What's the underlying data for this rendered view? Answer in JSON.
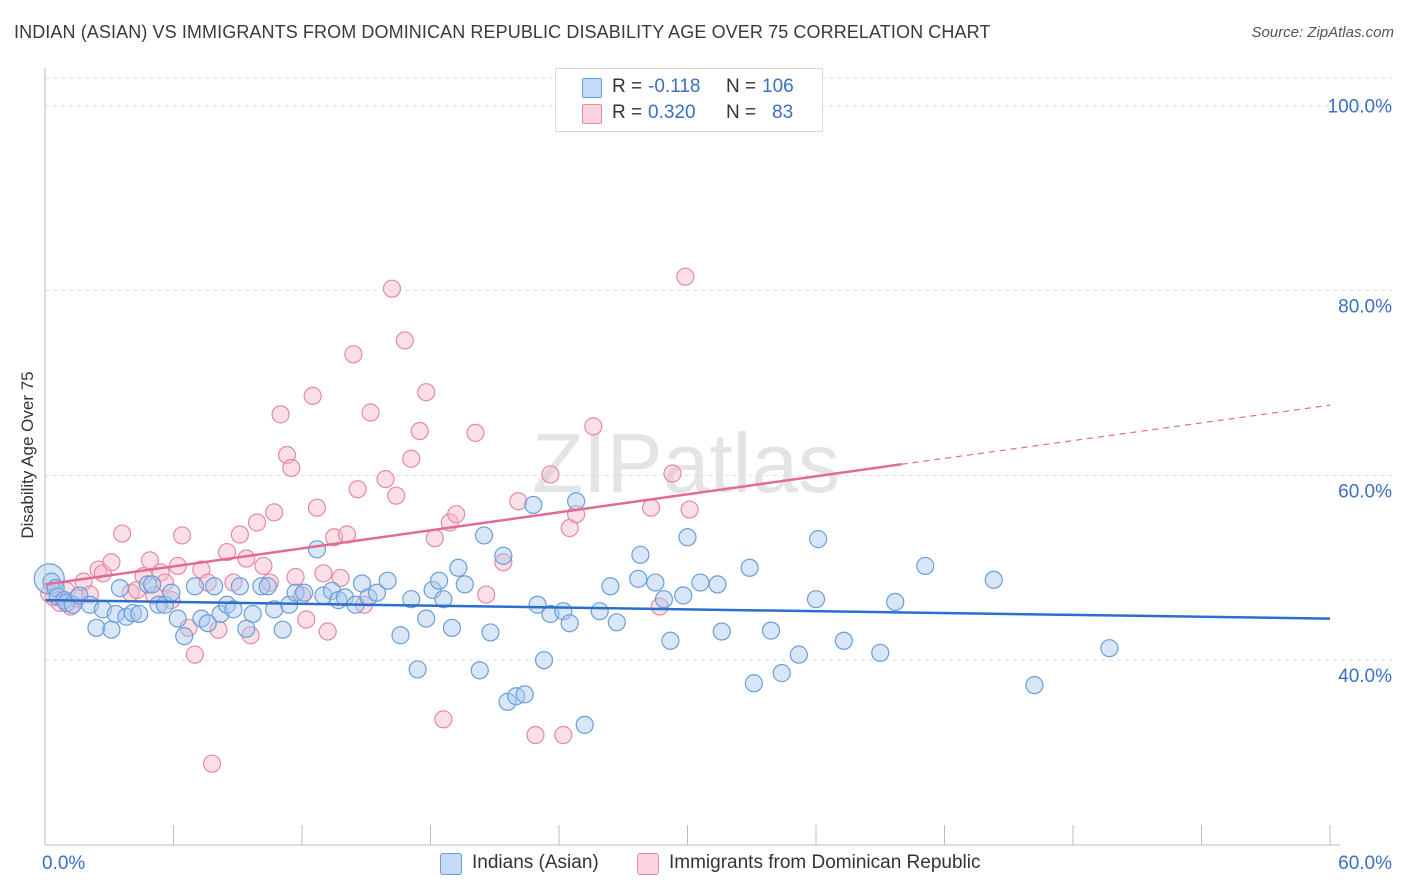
{
  "title": "INDIAN (ASIAN) VS IMMIGRANTS FROM DOMINICAN REPUBLIC DISABILITY AGE OVER 75 CORRELATION CHART",
  "source": "Source: ZipAtlas.com",
  "watermark": "ZIPatlas",
  "colors": {
    "blue_fill": "#a9c8f0",
    "blue_stroke": "#6a9fd8",
    "blue_line": "#2a6fcc",
    "pink_fill": "#f6b8c9",
    "pink_stroke": "#e58aa6",
    "pink_line": "#e36a92",
    "axis_label": "#3a6fc2"
  },
  "stats_legend": {
    "row1": {
      "r_label": "R =",
      "r_value": "-0.118",
      "n_label": "N =",
      "n_value": "106"
    },
    "row2": {
      "r_label": "R =",
      "r_value": "0.320",
      "n_label": "N =",
      "n_value": "83"
    }
  },
  "bottom_legend": {
    "series1": "Indians (Asian)",
    "series2": "Immigrants from Dominican Republic"
  },
  "chart_data": {
    "type": "scatter",
    "ylabel": "Disability Age Over 75",
    "xlim": [
      0,
      60
    ],
    "ylim": [
      20,
      103
    ],
    "x_tick_labels": [
      "0.0%",
      "60.0%"
    ],
    "y_tick_labels": [
      "40.0%",
      "60.0%",
      "80.0%",
      "100.0%"
    ],
    "y_ticks": [
      40,
      60,
      80,
      100
    ],
    "grid": true,
    "series": [
      {
        "name": "Indians (Asian)",
        "trend": {
          "x": [
            0,
            60
          ],
          "y": [
            46.5,
            44.5
          ]
        },
        "points": [
          [
            0.3,
            48.5
          ],
          [
            0.5,
            47.8
          ],
          [
            0.6,
            46.9
          ],
          [
            0.9,
            46.5
          ],
          [
            1.0,
            46.2
          ],
          [
            1.3,
            46.0
          ],
          [
            1.6,
            47.0
          ],
          [
            2.1,
            46.0
          ],
          [
            2.4,
            43.5
          ],
          [
            2.7,
            45.5
          ],
          [
            3.1,
            43.3
          ],
          [
            3.3,
            45.0
          ],
          [
            3.5,
            47.8
          ],
          [
            3.8,
            44.7
          ],
          [
            4.1,
            45.1
          ],
          [
            4.4,
            45.0
          ],
          [
            4.8,
            48.2
          ],
          [
            5.0,
            48.2
          ],
          [
            5.3,
            46.0
          ],
          [
            5.6,
            46.0
          ],
          [
            5.9,
            47.3
          ],
          [
            6.2,
            44.5
          ],
          [
            6.5,
            42.6
          ],
          [
            7.0,
            48.0
          ],
          [
            7.3,
            44.5
          ],
          [
            7.6,
            44.0
          ],
          [
            7.9,
            48.0
          ],
          [
            8.2,
            45.0
          ],
          [
            8.5,
            46.0
          ],
          [
            8.8,
            45.5
          ],
          [
            9.1,
            48.0
          ],
          [
            9.4,
            43.4
          ],
          [
            9.7,
            45.0
          ],
          [
            10.1,
            48.0
          ],
          [
            10.4,
            48.0
          ],
          [
            10.7,
            45.5
          ],
          [
            11.1,
            43.3
          ],
          [
            11.4,
            46.0
          ],
          [
            11.7,
            47.3
          ],
          [
            12.1,
            47.3
          ],
          [
            12.7,
            52.0
          ],
          [
            13.0,
            47.0
          ],
          [
            13.4,
            47.5
          ],
          [
            13.7,
            46.5
          ],
          [
            14.0,
            46.8
          ],
          [
            14.5,
            46.0
          ],
          [
            14.8,
            48.3
          ],
          [
            15.1,
            46.8
          ],
          [
            15.5,
            47.3
          ],
          [
            16.0,
            48.6
          ],
          [
            16.6,
            42.7
          ],
          [
            17.1,
            46.6
          ],
          [
            17.4,
            39.0
          ],
          [
            17.8,
            44.5
          ],
          [
            18.1,
            47.6
          ],
          [
            18.4,
            48.6
          ],
          [
            18.6,
            46.6
          ],
          [
            19.0,
            43.5
          ],
          [
            19.3,
            50.0
          ],
          [
            19.6,
            48.2
          ],
          [
            20.3,
            38.9
          ],
          [
            20.5,
            53.5
          ],
          [
            20.8,
            43.0
          ],
          [
            21.4,
            51.3
          ],
          [
            21.6,
            35.5
          ],
          [
            22.0,
            36.1
          ],
          [
            22.4,
            36.3
          ],
          [
            22.8,
            56.8
          ],
          [
            23.0,
            46.0
          ],
          [
            23.3,
            40.0
          ],
          [
            23.6,
            45.0
          ],
          [
            24.2,
            45.3
          ],
          [
            24.5,
            44.0
          ],
          [
            24.8,
            57.2
          ],
          [
            25.2,
            33.0
          ],
          [
            25.9,
            45.3
          ],
          [
            26.4,
            48.0
          ],
          [
            26.7,
            44.1
          ],
          [
            27.7,
            48.8
          ],
          [
            27.8,
            51.4
          ],
          [
            28.5,
            48.4
          ],
          [
            28.9,
            46.6
          ],
          [
            29.2,
            42.1
          ],
          [
            29.8,
            47.0
          ],
          [
            30.0,
            53.3
          ],
          [
            30.6,
            48.4
          ],
          [
            31.4,
            48.2
          ],
          [
            31.6,
            43.1
          ],
          [
            32.9,
            50.0
          ],
          [
            33.1,
            37.5
          ],
          [
            33.9,
            43.2
          ],
          [
            34.4,
            38.6
          ],
          [
            35.2,
            40.6
          ],
          [
            36.0,
            46.6
          ],
          [
            36.1,
            53.1
          ],
          [
            37.3,
            42.1
          ],
          [
            39.0,
            40.8
          ],
          [
            39.7,
            46.3
          ],
          [
            41.1,
            50.2
          ],
          [
            44.3,
            48.7
          ],
          [
            46.2,
            37.3
          ],
          [
            49.7,
            41.3
          ]
        ]
      },
      {
        "name": "Immigrants from Dominican Republic",
        "trend": {
          "x": [
            0,
            40
          ],
          "y": [
            48.2,
            61.2
          ]
        },
        "trend_extension": {
          "x": [
            40,
            60
          ],
          "y": [
            61.2,
            67.6
          ]
        },
        "points": [
          [
            0.2,
            47.2
          ],
          [
            0.4,
            46.8
          ],
          [
            0.7,
            46.2
          ],
          [
            1.0,
            47.5
          ],
          [
            1.2,
            45.8
          ],
          [
            1.5,
            46.7
          ],
          [
            1.8,
            48.5
          ],
          [
            2.1,
            47.1
          ],
          [
            2.5,
            49.8
          ],
          [
            2.7,
            49.4
          ],
          [
            3.1,
            50.6
          ],
          [
            3.6,
            53.7
          ],
          [
            4.0,
            47.3
          ],
          [
            4.3,
            47.6
          ],
          [
            4.6,
            49.1
          ],
          [
            4.9,
            50.8
          ],
          [
            5.1,
            47.0
          ],
          [
            5.4,
            49.5
          ],
          [
            5.6,
            48.4
          ],
          [
            5.9,
            46.5
          ],
          [
            6.2,
            50.2
          ],
          [
            6.4,
            53.5
          ],
          [
            6.7,
            43.5
          ],
          [
            7.0,
            40.6
          ],
          [
            7.3,
            49.8
          ],
          [
            7.6,
            48.4
          ],
          [
            7.8,
            28.8
          ],
          [
            8.1,
            43.3
          ],
          [
            8.5,
            51.7
          ],
          [
            8.8,
            48.4
          ],
          [
            9.1,
            53.6
          ],
          [
            9.4,
            51.0
          ],
          [
            9.6,
            42.7
          ],
          [
            9.9,
            54.9
          ],
          [
            10.2,
            50.2
          ],
          [
            10.5,
            48.4
          ],
          [
            10.7,
            56.0
          ],
          [
            11.0,
            66.6
          ],
          [
            11.3,
            62.2
          ],
          [
            11.5,
            60.8
          ],
          [
            11.7,
            49.0
          ],
          [
            12.0,
            47.0
          ],
          [
            12.2,
            44.4
          ],
          [
            12.5,
            68.6
          ],
          [
            12.7,
            56.5
          ],
          [
            13.0,
            49.4
          ],
          [
            13.2,
            43.1
          ],
          [
            13.5,
            53.3
          ],
          [
            13.8,
            48.9
          ],
          [
            14.1,
            53.6
          ],
          [
            14.4,
            73.1
          ],
          [
            14.6,
            58.5
          ],
          [
            14.9,
            46.0
          ],
          [
            15.2,
            66.8
          ],
          [
            15.9,
            59.6
          ],
          [
            16.2,
            80.2
          ],
          [
            16.4,
            57.8
          ],
          [
            16.8,
            74.6
          ],
          [
            17.1,
            61.8
          ],
          [
            17.5,
            64.8
          ],
          [
            17.8,
            69.0
          ],
          [
            18.2,
            53.2
          ],
          [
            18.6,
            33.6
          ],
          [
            18.9,
            54.9
          ],
          [
            19.2,
            55.8
          ],
          [
            20.1,
            64.6
          ],
          [
            20.6,
            47.1
          ],
          [
            21.4,
            50.6
          ],
          [
            22.1,
            57.2
          ],
          [
            22.9,
            31.9
          ],
          [
            23.6,
            60.1
          ],
          [
            24.2,
            31.9
          ],
          [
            24.5,
            54.3
          ],
          [
            24.8,
            55.8
          ],
          [
            25.6,
            65.3
          ],
          [
            28.3,
            56.5
          ],
          [
            28.7,
            45.8
          ],
          [
            29.3,
            60.2
          ],
          [
            29.9,
            81.5
          ],
          [
            30.1,
            56.3
          ]
        ]
      }
    ]
  }
}
